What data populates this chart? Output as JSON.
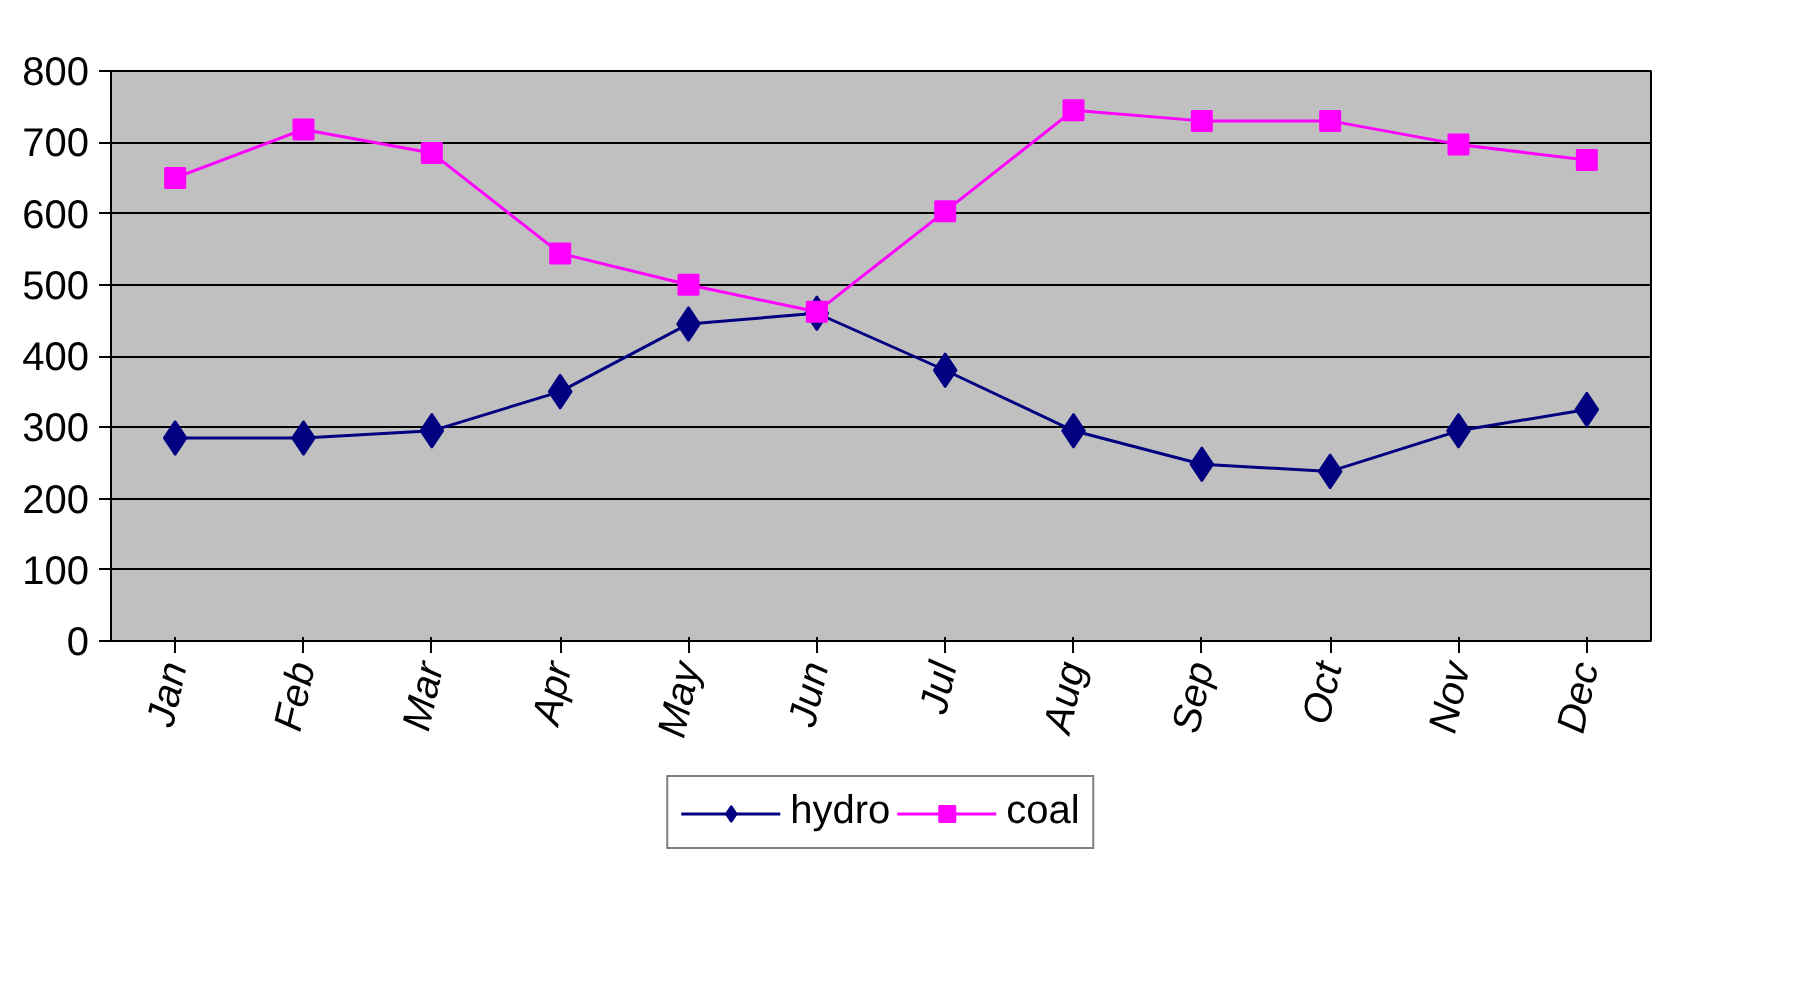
{
  "chart_data": {
    "type": "line",
    "categories": [
      "Jan",
      "Feb",
      "Mar",
      "Apr",
      "May",
      "Jun",
      "Jul",
      "Aug",
      "Sep",
      "Oct",
      "Nov",
      "Dec"
    ],
    "series": [
      {
        "name": "hydro",
        "color": "#000080",
        "marker": "diamond",
        "values": [
          285,
          285,
          295,
          350,
          445,
          460,
          380,
          295,
          248,
          238,
          295,
          325
        ]
      },
      {
        "name": "coal",
        "color": "#ff00ff",
        "marker": "square",
        "values": [
          650,
          718,
          685,
          544,
          500,
          462,
          603,
          745,
          730,
          730,
          697,
          675
        ]
      }
    ],
    "ylim": [
      0,
      800
    ],
    "yticks": [
      0,
      100,
      200,
      300,
      400,
      500,
      600,
      700,
      800
    ],
    "grid": "y",
    "legend": "bottom",
    "line_style": "solid"
  }
}
